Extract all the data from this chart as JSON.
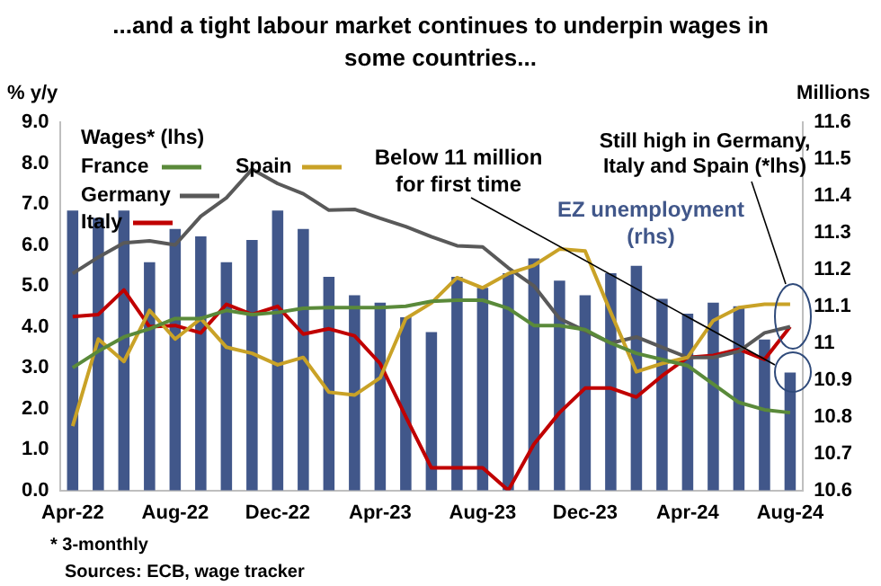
{
  "chart_data": {
    "type": "bar",
    "title": "...and a tight labour market continues to underpin wages in some countries...",
    "ylabel": "% y/y",
    "y2label": "Millions",
    "legend_title": "Wages* (lhs)",
    "annotations": [
      "Below 11 million for first time",
      "Still high in Germany, Italy and Spain (*lhs)",
      "* 3-monthly",
      "Sources: ECB, wage tracker"
    ],
    "categories": [
      "Apr-22",
      null,
      null,
      null,
      "Aug-22",
      null,
      null,
      null,
      "Dec-22",
      null,
      null,
      null,
      "Apr-23",
      null,
      null,
      null,
      "Aug-23",
      null,
      null,
      null,
      "Dec-23",
      null,
      null,
      null,
      "Apr-24",
      null,
      null,
      null,
      "Aug-24"
    ],
    "series": [
      {
        "name": "EZ unemployment (rhs)",
        "axis": "y2",
        "color": "#41578a",
        "values": [
          11.36,
          11.34,
          11.36,
          11.22,
          11.31,
          11.29,
          11.22,
          11.28,
          11.36,
          11.31,
          11.18,
          11.13,
          11.11,
          11.07,
          11.03,
          11.18,
          11.15,
          11.19,
          11.23,
          11.17,
          11.13,
          11.19,
          11.21,
          11.12,
          11.08,
          11.11,
          11.1,
          11.01,
          10.92
        ]
      },
      {
        "name": "France",
        "type": "line",
        "color": "#5a8a3a",
        "values": [
          3.0,
          3.4,
          3.75,
          3.95,
          4.2,
          4.2,
          4.4,
          4.3,
          4.35,
          4.45,
          4.47,
          4.47,
          4.47,
          4.5,
          4.62,
          4.65,
          4.65,
          4.45,
          4.03,
          4.03,
          3.93,
          3.6,
          3.35,
          3.2,
          3.05,
          2.6,
          2.15,
          1.97,
          1.9
        ]
      },
      {
        "name": "Spain",
        "type": "line",
        "color": "#c9a227",
        "values": [
          1.57,
          3.7,
          3.15,
          4.4,
          3.7,
          4.2,
          3.5,
          3.35,
          3.07,
          3.25,
          2.4,
          2.33,
          2.75,
          4.2,
          4.58,
          5.2,
          4.95,
          5.3,
          5.5,
          5.9,
          5.85,
          4.35,
          2.9,
          3.1,
          3.25,
          4.15,
          4.47,
          4.55,
          4.55
        ]
      },
      {
        "name": "Germany",
        "type": "line",
        "color": "#595959",
        "values": [
          5.3,
          5.7,
          6.05,
          6.1,
          6.0,
          6.7,
          7.15,
          7.85,
          7.5,
          7.25,
          6.85,
          6.87,
          6.65,
          6.45,
          6.2,
          5.98,
          5.95,
          5.44,
          5.0,
          4.2,
          3.9,
          3.6,
          3.75,
          3.5,
          3.25,
          3.25,
          3.4,
          3.85,
          4.0
        ]
      },
      {
        "name": "Italy",
        "type": "line",
        "color": "#c00000",
        "values": [
          4.25,
          4.3,
          4.9,
          4.0,
          4.03,
          3.85,
          4.55,
          4.3,
          4.5,
          3.82,
          3.95,
          3.78,
          3.1,
          1.8,
          0.55,
          0.55,
          0.55,
          0.0,
          1.13,
          1.9,
          2.5,
          2.5,
          2.28,
          2.8,
          3.25,
          3.3,
          3.45,
          3.2,
          4.0
        ]
      }
    ],
    "ylim": [
      0,
      9
    ],
    "yticks": [
      {
        "value": 0,
        "label": "0.0"
      },
      {
        "value": 1,
        "label": "1.0"
      },
      {
        "value": 2,
        "label": "2.0"
      },
      {
        "value": 3,
        "label": "3.0"
      },
      {
        "value": 4,
        "label": "4.0"
      },
      {
        "value": 5,
        "label": "5.0"
      },
      {
        "value": 6,
        "label": "6.0"
      },
      {
        "value": 7,
        "label": "7.0"
      },
      {
        "value": 8,
        "label": "8.0"
      },
      {
        "value": 9,
        "label": "9.0"
      }
    ],
    "y2lim": [
      10.6,
      11.6
    ],
    "y2ticks": [
      10.6,
      10.7,
      10.8,
      10.9,
      11,
      11.1,
      11.2,
      11.3,
      11.4,
      11.5,
      11.6
    ],
    "legend": "top left",
    "marker": "none",
    "line_style": "solid"
  }
}
